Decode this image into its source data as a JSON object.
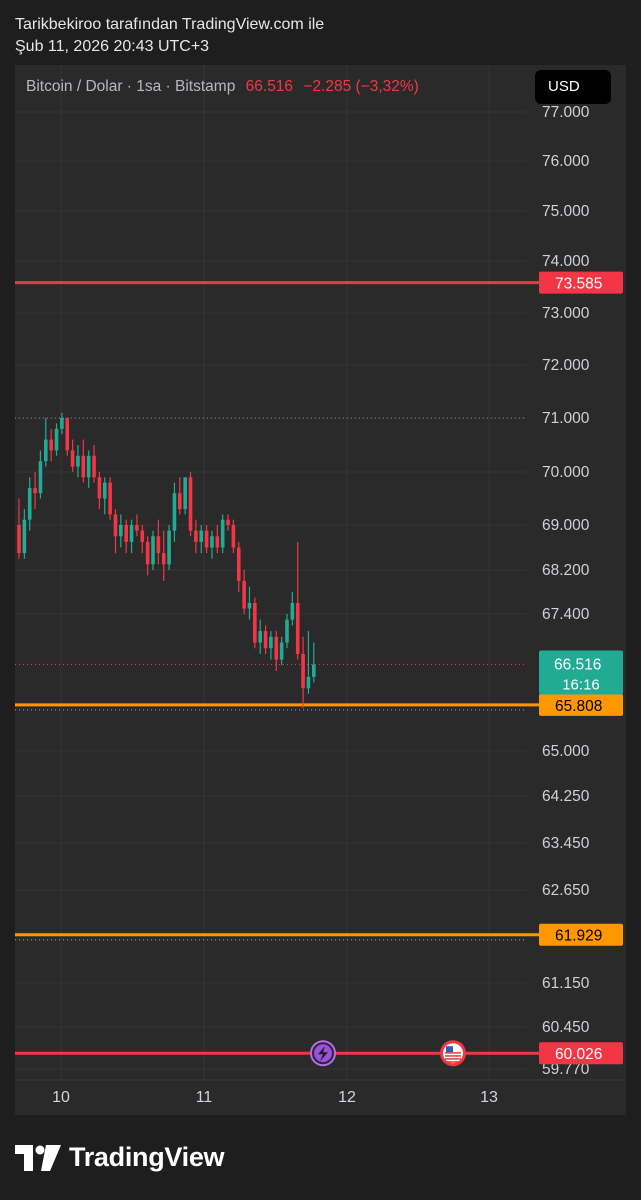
{
  "header": {
    "line1": "Tarikbekiroo tarafından TradingView.com ile",
    "line2": "Şub 11, 2026 20:43 UTC+3"
  },
  "legend": {
    "symbol": "Bitcoin / Dolar · 1sa · Bitstamp",
    "price": "66.516",
    "change": "−2.285 (−3,32%)"
  },
  "currency_button": "USD",
  "brand": {
    "name": "TradingView"
  },
  "colors": {
    "up": "#22ab94",
    "down": "#f23645",
    "level_orange": "#ff9800",
    "level_red": "#f23645",
    "background": "#1e1e1e",
    "pane": "#2a2a2a"
  },
  "chart_data": {
    "type": "candlestick",
    "x_ticks": [
      "10",
      "11",
      "12",
      "13"
    ],
    "y_ticks": [
      "77.000",
      "76.000",
      "75.000",
      "74.000",
      "73.000",
      "72.000",
      "71.000",
      "70.000",
      "69.000",
      "68.200",
      "67.400",
      "65.000",
      "64.250",
      "63.450",
      "62.650",
      "61.150",
      "60.450",
      "59.770"
    ],
    "current_price": {
      "label": "66.516",
      "countdown": "16:16"
    },
    "high_marker": "71.000",
    "levels": [
      {
        "value": "73.585",
        "color": "red"
      },
      {
        "value": "65.808",
        "color": "orange"
      },
      {
        "value": "61.929",
        "color": "orange"
      },
      {
        "value": "60.026",
        "color": "red"
      }
    ],
    "event_icons": [
      "lightning-event",
      "us-flag-event"
    ],
    "candles": [
      [
        69.0,
        69.5,
        68.4,
        68.5
      ],
      [
        68.5,
        69.3,
        68.4,
        69.1
      ],
      [
        69.1,
        69.9,
        68.9,
        69.7
      ],
      [
        69.7,
        70.0,
        69.3,
        69.6
      ],
      [
        69.6,
        70.4,
        69.5,
        70.2
      ],
      [
        70.2,
        71.0,
        70.1,
        70.6
      ],
      [
        70.6,
        70.8,
        70.2,
        70.4
      ],
      [
        70.4,
        70.9,
        70.3,
        70.8
      ],
      [
        70.8,
        71.1,
        70.7,
        71.0
      ],
      [
        71.0,
        71.0,
        70.3,
        70.4
      ],
      [
        70.4,
        70.6,
        70.0,
        70.1
      ],
      [
        70.1,
        70.5,
        69.9,
        70.3
      ],
      [
        70.3,
        70.6,
        69.8,
        69.9
      ],
      [
        69.9,
        70.4,
        69.7,
        70.3
      ],
      [
        70.3,
        70.5,
        69.8,
        69.9
      ],
      [
        69.9,
        70.0,
        69.3,
        69.5
      ],
      [
        69.5,
        69.9,
        69.2,
        69.8
      ],
      [
        69.8,
        69.9,
        69.1,
        69.2
      ],
      [
        69.2,
        69.3,
        68.5,
        68.8
      ],
      [
        68.8,
        69.2,
        68.6,
        69.0
      ],
      [
        69.0,
        69.1,
        68.5,
        68.7
      ],
      [
        68.7,
        69.1,
        68.5,
        69.0
      ],
      [
        69.0,
        69.2,
        68.8,
        68.9
      ],
      [
        68.9,
        69.0,
        68.5,
        68.7
      ],
      [
        68.7,
        68.8,
        68.1,
        68.3
      ],
      [
        68.3,
        68.9,
        68.2,
        68.8
      ],
      [
        68.8,
        69.1,
        68.3,
        68.5
      ],
      [
        68.5,
        68.9,
        68.0,
        68.3
      ],
      [
        68.3,
        69.0,
        68.2,
        68.9
      ],
      [
        68.9,
        69.8,
        68.7,
        69.6
      ],
      [
        69.6,
        69.9,
        69.2,
        69.3
      ],
      [
        69.3,
        69.9,
        69.2,
        69.9
      ],
      [
        69.9,
        70.0,
        68.8,
        68.9
      ],
      [
        68.9,
        69.1,
        68.5,
        68.7
      ],
      [
        68.7,
        69.0,
        68.5,
        68.9
      ],
      [
        68.9,
        69.0,
        68.5,
        68.6
      ],
      [
        68.6,
        68.9,
        68.4,
        68.8
      ],
      [
        68.8,
        69.0,
        68.5,
        68.6
      ],
      [
        68.6,
        69.2,
        68.5,
        69.1
      ],
      [
        69.1,
        69.2,
        68.9,
        69.0
      ],
      [
        69.0,
        69.1,
        68.5,
        68.6
      ],
      [
        68.6,
        68.7,
        67.8,
        68.0
      ],
      [
        68.0,
        68.2,
        67.4,
        67.5
      ],
      [
        67.5,
        67.9,
        67.3,
        67.6
      ],
      [
        67.6,
        67.7,
        66.8,
        66.9
      ],
      [
        66.9,
        67.3,
        66.7,
        67.1
      ],
      [
        67.1,
        67.2,
        66.7,
        66.8
      ],
      [
        66.8,
        67.1,
        66.6,
        67.0
      ],
      [
        67.0,
        67.1,
        66.4,
        66.6
      ],
      [
        66.6,
        67.0,
        66.5,
        66.9
      ],
      [
        66.9,
        67.4,
        66.8,
        67.3
      ],
      [
        67.3,
        67.8,
        67.2,
        67.6
      ],
      [
        67.6,
        68.7,
        66.6,
        66.7
      ],
      [
        66.7,
        67.0,
        65.75,
        66.1
      ],
      [
        66.1,
        67.1,
        66.0,
        66.3
      ],
      [
        66.3,
        66.9,
        66.2,
        66.516
      ]
    ]
  }
}
